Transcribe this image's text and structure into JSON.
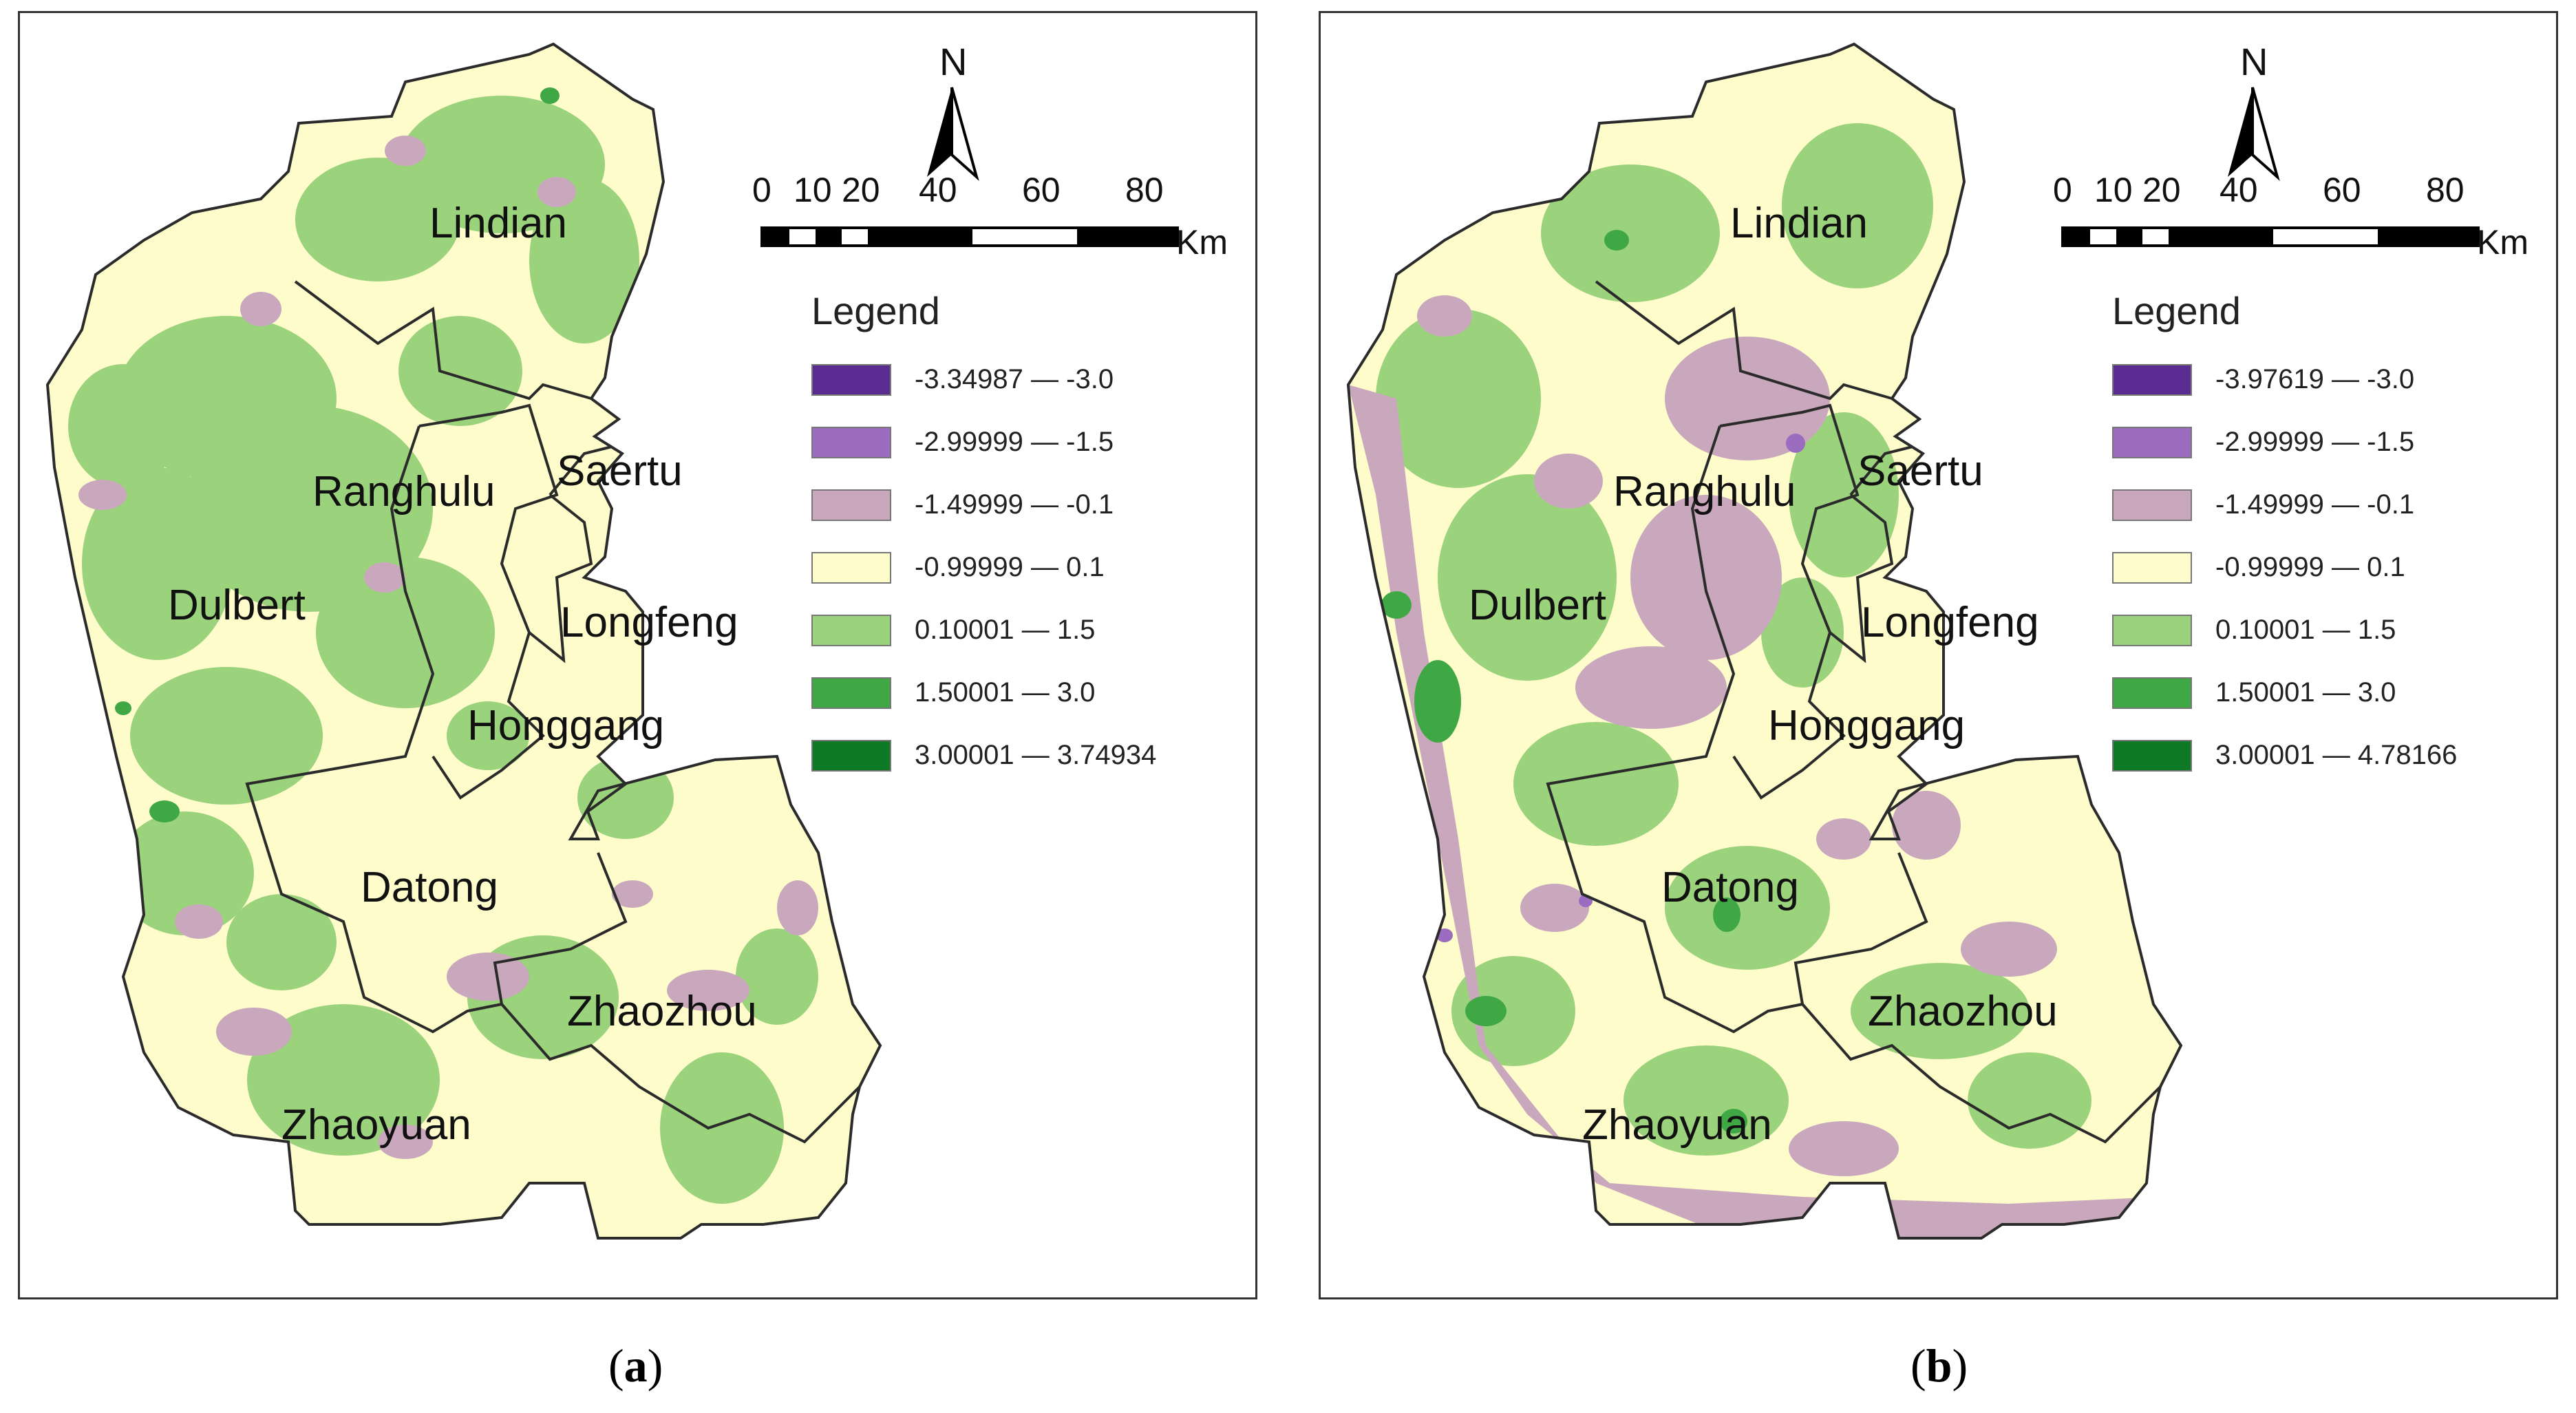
{
  "colors": {
    "c1": "#5b2c91",
    "c2": "#9b6cbf",
    "c3": "#c9a8bd",
    "c4": "#fffccc",
    "c5": "#9bd27c",
    "c6": "#3fa845",
    "c7": "#0e7a26",
    "boundary": "#2b2b2b"
  },
  "north_arrow": {
    "label": "N"
  },
  "scale_bar": {
    "ticks": [
      "0",
      "10",
      "20",
      "40",
      "60",
      "80"
    ],
    "unit": "Km"
  },
  "districts": [
    "Lindian",
    "Saertu",
    "Ranghulu",
    "Dulbert",
    "Longfeng",
    "Honggang",
    "Datong",
    "Zhaozhou",
    "Zhaoyuan"
  ],
  "panels": [
    {
      "caption_letter": "a",
      "legend_title": "Legend",
      "legend": [
        "-3.34987 — -3.0",
        "-2.99999 — -1.5",
        "-1.49999 — -0.1",
        "-0.99999 — 0.1",
        "0.10001 — 1.5",
        "1.50001 — 3.0",
        "3.00001 — 3.74934"
      ]
    },
    {
      "caption_letter": "b",
      "legend_title": "Legend",
      "legend": [
        "-3.97619 — -3.0",
        "-2.99999 — -1.5",
        "-1.49999 — -0.1",
        "-0.99999 — 0.1",
        "0.10001 — 1.5",
        "1.50001 — 3.0",
        "3.00001 — 4.78166"
      ]
    }
  ]
}
